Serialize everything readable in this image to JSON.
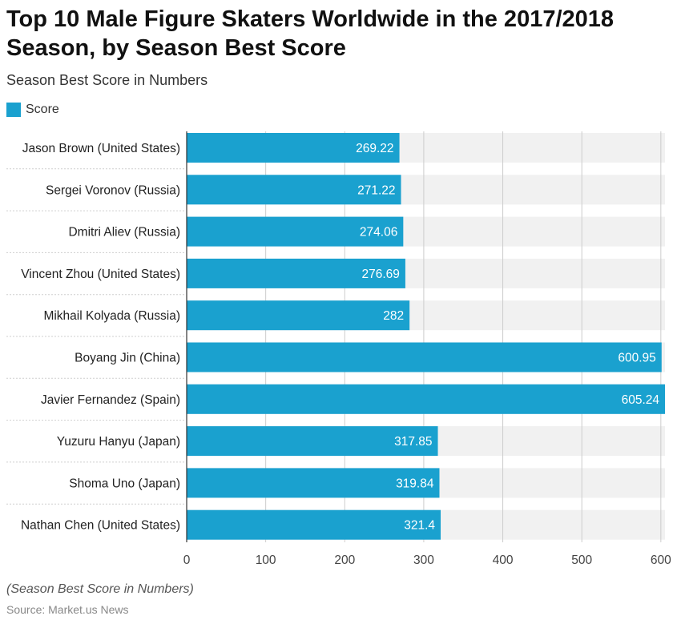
{
  "title": "Top 10 Male Figure Skaters Worldwide in the 2017/2018 Season, by Season Best Score",
  "subtitle": "Season Best Score in Numbers",
  "caption": "(Season Best Score in Numbers)",
  "source": "Source: Market.us News",
  "colors": {
    "bar": "#1aa1cf",
    "band": "#f1f1f1",
    "grid": "#cccccc"
  },
  "chart_data": {
    "type": "bar",
    "orientation": "horizontal",
    "categories": [
      "Jason Brown (United States)",
      "Sergei Voronov (Russia)",
      "Dmitri Aliev (Russia)",
      "Vincent Zhou (United States)",
      "Mikhail Kolyada (Russia)",
      "Boyang Jin (China)",
      "Javier Fernandez (Spain)",
      "Yuzuru Hanyu (Japan)",
      "Shoma Uno (Japan)",
      "Nathan Chen (United States)"
    ],
    "series": [
      {
        "name": "Score",
        "values": [
          269.22,
          271.22,
          274.06,
          276.69,
          282,
          600.95,
          605.24,
          317.85,
          319.84,
          321.4
        ],
        "labels": [
          "269.22",
          "271.22",
          "274.06",
          "276.69",
          "282",
          "600.95",
          "605.24",
          "317.85",
          "319.84",
          "321.4"
        ]
      }
    ],
    "xticks": [
      0,
      100,
      200,
      300,
      400,
      500,
      600
    ],
    "xlim": [
      0,
      605.24
    ],
    "grid": true,
    "legend": "top-left"
  }
}
